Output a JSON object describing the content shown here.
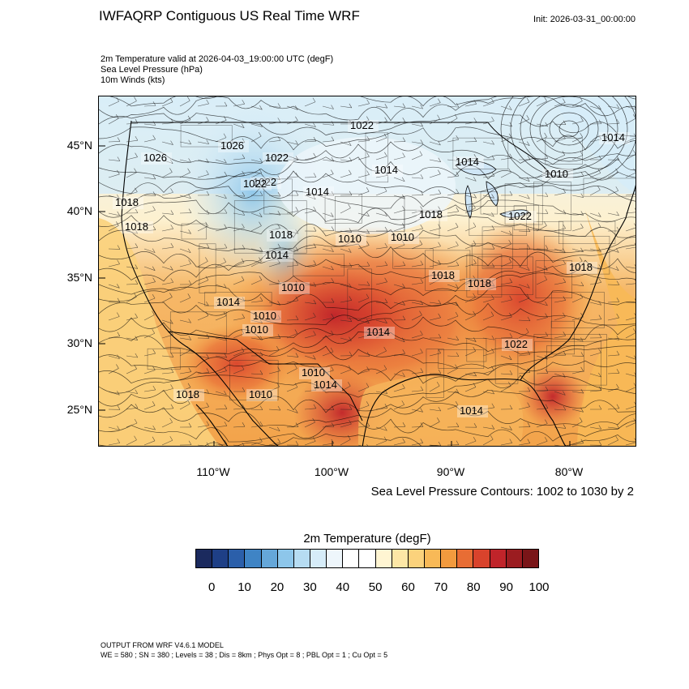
{
  "header": {
    "title": "IWFAQRP Contiguous US Real Time WRF",
    "init": "Init: 2026-03-31_00:00:00"
  },
  "fields": [
    "2m Temperature valid at 2026-04-03_19:00:00 UTC   (degF)",
    "Sea Level Pressure   (hPa)",
    "10m Winds   (kts)"
  ],
  "map": {
    "lat_labels": [
      "45°N",
      "40°N",
      "35°N",
      "30°N",
      "25°N"
    ],
    "lon_labels": [
      "110°W",
      "100°W",
      "90°W",
      "80°W"
    ],
    "pressure_labels": [
      "1022",
      "1026",
      "1026",
      "1022",
      "1022",
      "1018",
      "1018",
      "1014",
      "1022",
      "1018",
      "1014",
      "1010",
      "1010",
      "1010",
      "1010",
      "1010",
      "1010",
      "1014",
      "1014",
      "1014",
      "1018",
      "1018",
      "1018",
      "1022",
      "1018",
      "1014",
      "1010",
      "1014",
      "1010",
      "1014",
      "1018",
      "1014",
      "1022"
    ],
    "contour_note": "Sea Level Pressure Contours: 1002 to 1030 by 2"
  },
  "colorbar": {
    "title": "2m Temperature  (degF)",
    "colors": [
      "#1b2a5e",
      "#1e3f86",
      "#2b5faa",
      "#3f84c5",
      "#65a7d9",
      "#8dc6ea",
      "#b6dcf2",
      "#d6ecf8",
      "#eef6fb",
      "#ffffff",
      "#ffffff",
      "#fff5d2",
      "#fde7a6",
      "#fbd27c",
      "#f8b957",
      "#f29a3e",
      "#e86d34",
      "#d9432c",
      "#c0242a",
      "#9b1c20",
      "#7a1518"
    ],
    "tick_labels": [
      "0",
      "10",
      "20",
      "30",
      "40",
      "50",
      "60",
      "70",
      "80",
      "90",
      "100"
    ]
  },
  "footer": {
    "line1": "OUTPUT FROM WRF V4.6.1 MODEL",
    "line2": "WE = 580 ; SN = 380 ; Levels = 38 ; Dis = 8km ; Phys Opt = 8 ; PBL Opt = 1 ; Cu Opt = 5"
  }
}
